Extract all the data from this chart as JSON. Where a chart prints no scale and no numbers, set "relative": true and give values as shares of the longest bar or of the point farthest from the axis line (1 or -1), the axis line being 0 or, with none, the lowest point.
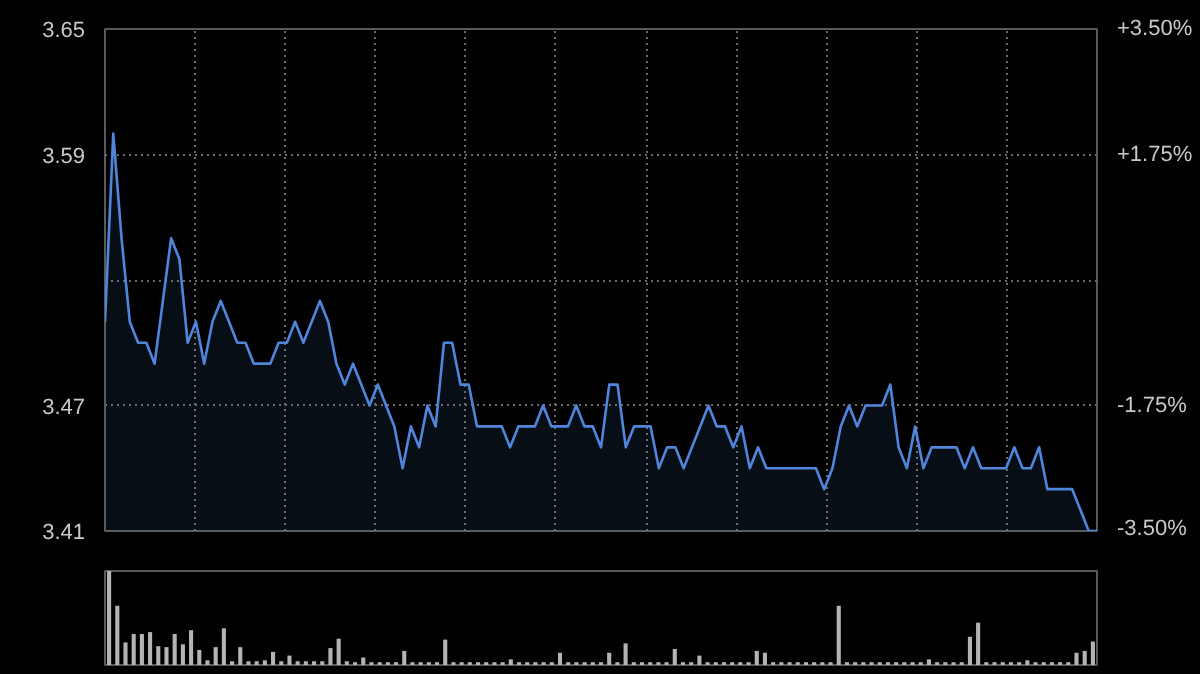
{
  "chart_data": [
    {
      "type": "area",
      "categories": [
        null,
        null,
        null,
        null,
        null,
        null,
        null,
        null,
        null,
        null,
        null,
        null,
        null,
        null,
        null,
        null,
        null,
        null,
        null,
        null,
        null,
        null,
        null,
        null,
        null,
        null,
        null,
        null,
        null,
        null,
        null,
        null,
        null,
        null,
        null,
        null,
        null,
        null,
        null,
        null,
        null,
        null,
        null,
        null,
        null,
        null,
        null,
        null,
        null,
        null,
        null,
        null,
        null,
        null,
        null,
        null,
        null,
        null,
        null,
        null,
        null,
        null,
        null,
        null,
        null,
        null,
        null,
        null,
        null,
        null,
        null,
        null,
        null,
        null,
        null,
        null,
        null,
        null,
        null,
        null,
        null,
        null,
        null,
        null,
        null,
        null,
        null,
        null,
        null,
        null,
        null,
        null,
        null,
        null,
        null,
        null,
        null,
        null,
        null,
        null,
        null,
        null,
        null,
        null,
        null,
        null,
        null,
        null,
        null,
        null,
        null,
        null,
        null,
        null,
        null,
        null,
        null,
        null,
        null,
        null,
        null
      ],
      "series": [
        {
          "color": "#4f86dc",
          "values": [
            3.51,
            3.6,
            3.55,
            3.51,
            3.5,
            3.5,
            3.49,
            3.52,
            3.55,
            3.54,
            3.5,
            3.51,
            3.49,
            3.51,
            3.52,
            3.51,
            3.5,
            3.5,
            3.49,
            3.49,
            3.49,
            3.5,
            3.5,
            3.51,
            3.5,
            3.51,
            3.52,
            3.51,
            3.49,
            3.48,
            3.49,
            3.48,
            3.47,
            3.48,
            3.47,
            3.46,
            3.44,
            3.46,
            3.45,
            3.47,
            3.46,
            3.5,
            3.5,
            3.48,
            3.48,
            3.46,
            3.46,
            3.46,
            3.46,
            3.45,
            3.46,
            3.46,
            3.46,
            3.47,
            3.46,
            3.46,
            3.46,
            3.47,
            3.46,
            3.46,
            3.45,
            3.48,
            3.48,
            3.45,
            3.46,
            3.46,
            3.46,
            3.44,
            3.45,
            3.45,
            3.44,
            3.45,
            3.46,
            3.47,
            3.46,
            3.46,
            3.45,
            3.46,
            3.44,
            3.45,
            3.44,
            3.44,
            3.44,
            3.44,
            3.44,
            3.44,
            3.44,
            3.43,
            3.44,
            3.46,
            3.47,
            3.46,
            3.47,
            3.47,
            3.47,
            3.48,
            3.45,
            3.44,
            3.46,
            3.44,
            3.45,
            3.45,
            3.45,
            3.45,
            3.44,
            3.45,
            3.44,
            3.44,
            3.44,
            3.44,
            3.45,
            3.44,
            3.44,
            3.45,
            3.43,
            3.43,
            3.43,
            3.43,
            3.42,
            3.41,
            3.41
          ]
        }
      ],
      "ylim": [
        3.41,
        3.65
      ],
      "yticks": [
        3.41,
        3.47,
        {
          "value": 3.53,
          "label": null
        },
        3.59,
        3.65
      ],
      "y2lim": [
        -3.5,
        3.5
      ],
      "y2ticks": [
        {
          "value": -3.5,
          "label": "-3.50%"
        },
        {
          "value": -1.75,
          "label": "-1.75%"
        },
        {
          "value": 0,
          "label": null
        },
        {
          "value": 1.75,
          "label": "+1.75%"
        },
        {
          "value": 3.5,
          "label": "+3.50%"
        }
      ],
      "grid": true
    },
    {
      "type": "bar",
      "relative": true,
      "color": "#b4b4b4",
      "categories": [
        null,
        null,
        null,
        null,
        null,
        null,
        null,
        null,
        null,
        null,
        null,
        null,
        null,
        null,
        null,
        null,
        null,
        null,
        null,
        null,
        null,
        null,
        null,
        null,
        null,
        null,
        null,
        null,
        null,
        null,
        null,
        null,
        null,
        null,
        null,
        null,
        null,
        null,
        null,
        null,
        null,
        null,
        null,
        null,
        null,
        null,
        null,
        null,
        null,
        null,
        null,
        null,
        null,
        null,
        null,
        null,
        null,
        null,
        null,
        null,
        null,
        null,
        null,
        null,
        null,
        null,
        null,
        null,
        null,
        null,
        null,
        null,
        null,
        null,
        null,
        null,
        null,
        null,
        null,
        null,
        null,
        null,
        null,
        null,
        null,
        null,
        null,
        null,
        null,
        null,
        null,
        null,
        null,
        null,
        null,
        null,
        null,
        null,
        null,
        null,
        null,
        null,
        null,
        null,
        null,
        null,
        null,
        null,
        null,
        null,
        null,
        null,
        null,
        null,
        null,
        null,
        null,
        null,
        null,
        null,
        null
      ],
      "values": [
        1.0,
        0.63,
        0.24,
        0.33,
        0.33,
        0.35,
        0.2,
        0.19,
        0.33,
        0.22,
        0.37,
        0.16,
        0.05,
        0.19,
        0.39,
        0.04,
        0.19,
        0.04,
        0.04,
        0.05,
        0.14,
        0.04,
        0.1,
        0.04,
        0.04,
        0.04,
        0.04,
        0.18,
        0.28,
        0.04,
        0.03,
        0.08,
        0.03,
        0.03,
        0.03,
        0.03,
        0.15,
        0.03,
        0.03,
        0.03,
        0.03,
        0.27,
        0.03,
        0.03,
        0.03,
        0.03,
        0.03,
        0.03,
        0.03,
        0.06,
        0.03,
        0.03,
        0.03,
        0.03,
        0.03,
        0.13,
        0.03,
        0.03,
        0.03,
        0.03,
        0.03,
        0.13,
        0.03,
        0.23,
        0.03,
        0.03,
        0.03,
        0.03,
        0.03,
        0.17,
        0.03,
        0.03,
        0.1,
        0.03,
        0.03,
        0.03,
        0.03,
        0.03,
        0.03,
        0.15,
        0.13,
        0.03,
        0.03,
        0.03,
        0.03,
        0.03,
        0.03,
        0.03,
        0.03,
        0.63,
        0.03,
        0.03,
        0.03,
        0.03,
        0.03,
        0.03,
        0.03,
        0.03,
        0.03,
        0.03,
        0.06,
        0.03,
        0.03,
        0.03,
        0.03,
        0.3,
        0.45,
        0.03,
        0.03,
        0.03,
        0.03,
        0.03,
        0.05,
        0.03,
        0.03,
        0.03,
        0.03,
        0.03,
        0.13,
        0.15,
        0.25
      ]
    }
  ]
}
